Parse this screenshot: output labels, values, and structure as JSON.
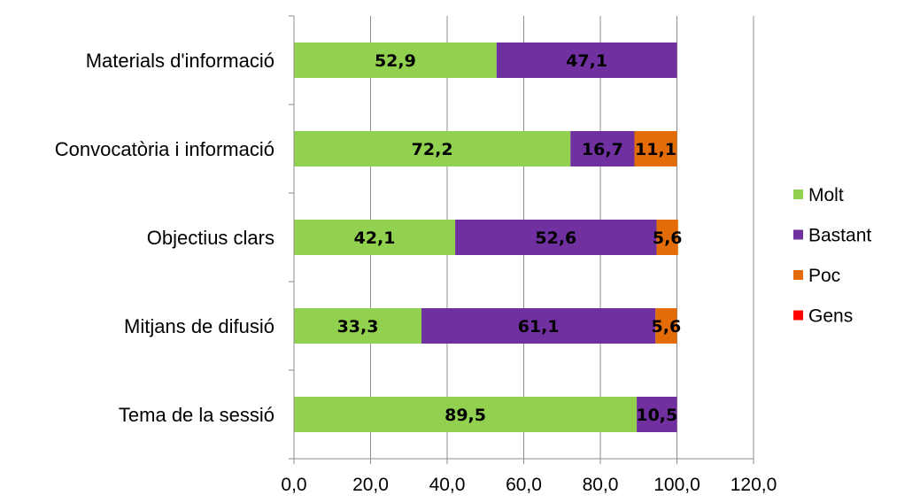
{
  "chart_data": {
    "type": "bar",
    "orientation": "horizontal",
    "stacked": true,
    "categories": [
      "Materials d'informació",
      "Convocatòria i informació",
      "Objectius clars",
      "Mitjans de difusió",
      "Tema de la sessió"
    ],
    "series": [
      {
        "name": "Molt",
        "color": "#92d050",
        "values": [
          52.9,
          72.2,
          42.1,
          33.3,
          89.5
        ],
        "labels": [
          "52,9",
          "72,2",
          "42,1",
          "33,3",
          "89,5"
        ]
      },
      {
        "name": "Bastant",
        "color": "#7030a0",
        "values": [
          47.1,
          16.7,
          52.6,
          61.1,
          10.5
        ],
        "labels": [
          "47,1",
          "16,7",
          "52,6",
          "61,1",
          "10,5"
        ]
      },
      {
        "name": "Poc",
        "color": "#e36c09",
        "values": [
          0,
          11.1,
          5.6,
          5.6,
          0
        ],
        "labels": [
          "",
          "11,1",
          "5,6",
          "5,6",
          ""
        ]
      },
      {
        "name": "Gens",
        "color": "#ff0000",
        "values": [
          0,
          0,
          0,
          0,
          0
        ],
        "labels": [
          "",
          "",
          "",
          "",
          ""
        ]
      }
    ],
    "xlim": [
      0,
      120
    ],
    "xticks": [
      0,
      20,
      40,
      60,
      80,
      100,
      120
    ],
    "xtick_labels": [
      "0,0",
      "20,0",
      "40,0",
      "60,0",
      "80,0",
      "100,0",
      "120,0"
    ],
    "grid": "vertical",
    "legend_position": "right",
    "title": "",
    "xlabel": "",
    "ylabel": ""
  }
}
